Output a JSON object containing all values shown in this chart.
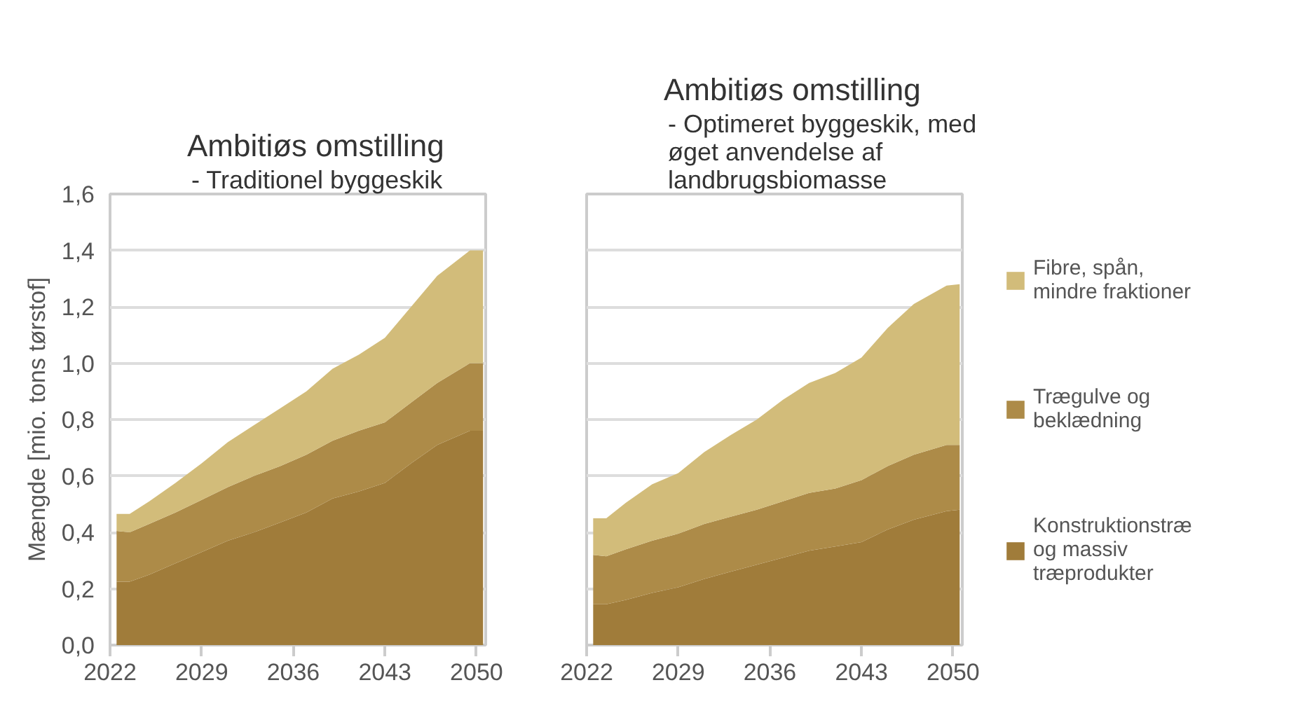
{
  "chart_data": [
    {
      "type": "area",
      "stacked": true,
      "title": "Ambitiøs omstilling",
      "subtitle": "- Traditionel byggeskik",
      "ylabel": "Mængde [mio. tons tørstof]",
      "x": [
        2022.5,
        2023.5,
        2025,
        2027,
        2029,
        2031,
        2033,
        2035,
        2037,
        2039,
        2041,
        2043,
        2045,
        2047,
        2049.5,
        2050.5
      ],
      "xlim": [
        2022,
        2050.7
      ],
      "xticks": [
        2022,
        2029,
        2036,
        2043,
        2050
      ],
      "ylim": [
        0,
        1.6
      ],
      "yticks": [
        {
          "value": 0,
          "label": "0,0"
        },
        {
          "value": 0.2,
          "label": "0,2"
        },
        {
          "value": 0.4,
          "label": "0,4"
        },
        {
          "value": 0.6,
          "label": "0,6"
        },
        {
          "value": 0.8,
          "label": "0,8"
        },
        {
          "value": 1.0,
          "label": "1,0"
        },
        {
          "value": 1.2,
          "label": "1,2"
        },
        {
          "value": 1.4,
          "label": "1,4"
        },
        {
          "value": 1.6,
          "label": "1,6"
        }
      ],
      "grid": "y",
      "legend": false,
      "series": [
        {
          "color": "#a07c3a",
          "values": [
            0.225,
            0.225,
            0.25,
            0.29,
            0.33,
            0.37,
            0.4,
            0.435,
            0.47,
            0.52,
            0.545,
            0.575,
            0.645,
            0.71,
            0.76,
            0.76
          ]
        },
        {
          "color": "#ad8b48",
          "values": [
            0.18,
            0.175,
            0.18,
            0.18,
            0.185,
            0.19,
            0.2,
            0.2,
            0.205,
            0.205,
            0.215,
            0.215,
            0.215,
            0.22,
            0.24,
            0.24
          ]
        },
        {
          "color": "#d2bc7a",
          "values": [
            0.06,
            0.065,
            0.08,
            0.105,
            0.13,
            0.16,
            0.18,
            0.205,
            0.225,
            0.255,
            0.27,
            0.3,
            0.34,
            0.38,
            0.4,
            0.4
          ]
        }
      ]
    },
    {
      "type": "area",
      "stacked": true,
      "title": "Ambitiøs omstilling",
      "subtitle": "- Optimeret byggeskik, med øget anvendelse af landbrugsbiomasse",
      "x": [
        2022.5,
        2023.5,
        2025,
        2027,
        2029,
        2031,
        2033,
        2035,
        2037,
        2039,
        2041,
        2043,
        2045,
        2047,
        2049.5,
        2050.5
      ],
      "xlim": [
        2022,
        2050.7
      ],
      "xticks": [
        2022,
        2029,
        2036,
        2043,
        2050
      ],
      "ylim": [
        0,
        1.6
      ],
      "yticks": [
        {
          "value": 0,
          "label": "0,0"
        },
        {
          "value": 0.2,
          "label": "0,2"
        },
        {
          "value": 0.4,
          "label": "0,4"
        },
        {
          "value": 0.6,
          "label": "0,6"
        },
        {
          "value": 0.8,
          "label": "0,8"
        },
        {
          "value": 1.0,
          "label": "1,0"
        },
        {
          "value": 1.2,
          "label": "1,2"
        },
        {
          "value": 1.4,
          "label": "1,4"
        },
        {
          "value": 1.6,
          "label": "1,6"
        }
      ],
      "grid": "y",
      "legend": "right",
      "tick_labels": "x",
      "series": [
        {
          "name": "Konstruktionstræ og massiv træprodukter",
          "color": "#a07c3a",
          "values": [
            0.145,
            0.145,
            0.16,
            0.185,
            0.205,
            0.235,
            0.26,
            0.285,
            0.31,
            0.335,
            0.35,
            0.365,
            0.41,
            0.445,
            0.475,
            0.48
          ]
        },
        {
          "name": "Trægulve og beklædning",
          "color": "#ad8b48",
          "values": [
            0.175,
            0.17,
            0.18,
            0.185,
            0.19,
            0.195,
            0.195,
            0.195,
            0.2,
            0.205,
            0.205,
            0.22,
            0.225,
            0.23,
            0.235,
            0.23
          ]
        },
        {
          "name": "Fibre, spån, mindre fraktioner",
          "color": "#d2bc7a",
          "values": [
            0.13,
            0.135,
            0.165,
            0.2,
            0.215,
            0.255,
            0.29,
            0.32,
            0.36,
            0.39,
            0.41,
            0.435,
            0.49,
            0.535,
            0.565,
            0.57
          ]
        }
      ]
    }
  ]
}
